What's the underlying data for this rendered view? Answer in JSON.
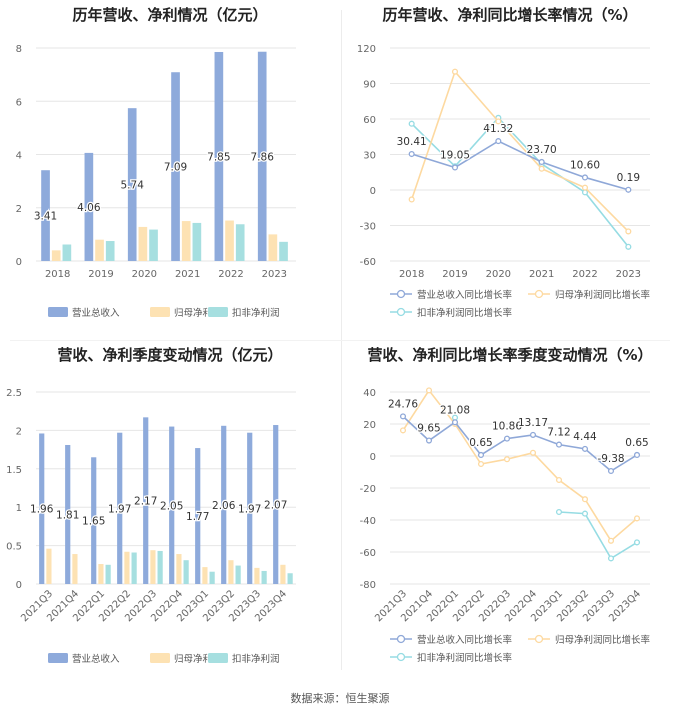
{
  "colors": {
    "revenue": "#8eaadb",
    "parent_profit": "#fde2b3",
    "deducted_profit": "#a6dfe0",
    "revenue_line": "#8fa8d8",
    "parent_line": "#fdd9a0",
    "deducted_line": "#96dce3",
    "grid": "#e6e6e6",
    "axis_text": "#666666"
  },
  "source": "数据来源：恒生聚源",
  "chart_data": [
    {
      "type": "bar",
      "title": "历年营收、净利情况（亿元）",
      "categories": [
        "2018",
        "2019",
        "2020",
        "2021",
        "2022",
        "2023"
      ],
      "ylim": [
        0,
        8
      ],
      "yticks": [
        "0",
        "2",
        "4",
        "6",
        "8"
      ],
      "series": [
        {
          "name": "营业总收入",
          "values": [
            3.41,
            4.06,
            5.74,
            7.09,
            7.85,
            7.86
          ],
          "labels": [
            "3.41",
            "4.06",
            "5.74",
            "7.09",
            "7.85",
            "7.86"
          ]
        },
        {
          "name": "归母净利润",
          "values": [
            0.4,
            0.8,
            1.28,
            1.5,
            1.52,
            1.0
          ]
        },
        {
          "name": "扣非净利润",
          "values": [
            0.62,
            0.75,
            1.18,
            1.43,
            1.38,
            0.72
          ]
        }
      ],
      "legend_position": "bottom"
    },
    {
      "type": "line",
      "title": "历年营收、净利同比增长率情况（%）",
      "categories": [
        "2018",
        "2019",
        "2020",
        "2021",
        "2022",
        "2023"
      ],
      "ylim": [
        -60,
        120
      ],
      "yticks": [
        "-60",
        "-30",
        "0",
        "30",
        "60",
        "90",
        "120"
      ],
      "series": [
        {
          "name": "营业总收入同比增长率",
          "values": [
            30.41,
            19.05,
            41.32,
            23.7,
            10.6,
            0.19
          ],
          "labels": [
            "30.41",
            "19.05",
            "41.32",
            "23.70",
            "10.60",
            "0.19"
          ]
        },
        {
          "name": "归母净利润同比增长率",
          "values": [
            -8,
            100,
            58,
            18,
            2,
            -35
          ]
        },
        {
          "name": "扣非净利润同比增长率",
          "values": [
            56,
            20,
            61,
            22,
            -2,
            -48
          ]
        }
      ],
      "legend_position": "bottom"
    },
    {
      "type": "bar",
      "title": "营收、净利季度变动情况（亿元）",
      "categories": [
        "2021Q3",
        "2021Q4",
        "2022Q1",
        "2022Q2",
        "2022Q3",
        "2022Q4",
        "2023Q1",
        "2023Q2",
        "2023Q3",
        "2023Q4"
      ],
      "ylim": [
        0,
        2.5
      ],
      "yticks": [
        "0",
        "0.5",
        "1",
        "1.5",
        "2",
        "2.5"
      ],
      "series": [
        {
          "name": "营业总收入",
          "values": [
            1.96,
            1.81,
            1.65,
            1.97,
            2.17,
            2.05,
            1.77,
            2.06,
            1.97,
            2.07
          ],
          "labels": [
            "1.96",
            "1.81",
            "1.65",
            "1.97",
            "2.17",
            "2.05",
            "1.77",
            "2.06",
            "1.97",
            "2.07"
          ]
        },
        {
          "name": "归母净利润",
          "values": [
            0.46,
            0.39,
            0.26,
            0.42,
            0.44,
            0.39,
            0.22,
            0.31,
            0.21,
            0.25
          ]
        },
        {
          "name": "扣非净利润",
          "values": [
            0,
            0,
            0.25,
            0.41,
            0.43,
            0.31,
            0.16,
            0.24,
            0.17,
            0.14
          ]
        }
      ],
      "legend_position": "bottom"
    },
    {
      "type": "line",
      "title": "营收、净利同比增长率季度变动情况（%）",
      "categories": [
        "2021Q3",
        "2021Q4",
        "2022Q1",
        "2022Q2",
        "2022Q3",
        "2022Q4",
        "2023Q1",
        "2023Q2",
        "2023Q3",
        "2023Q4"
      ],
      "ylim": [
        -80,
        40
      ],
      "yticks": [
        "-80",
        "-60",
        "-40",
        "-20",
        "0",
        "20",
        "40"
      ],
      "series": [
        {
          "name": "营业总收入同比增长率",
          "values": [
            24.76,
            9.65,
            21.08,
            0.65,
            10.86,
            13.17,
            7.12,
            4.44,
            -9.38,
            0.65
          ],
          "labels": [
            "24.76",
            "9.65",
            "21.08",
            "0.65",
            "10.86",
            "13.17",
            "7.12",
            "4.44",
            "-9.38",
            "0.65"
          ]
        },
        {
          "name": "归母净利润同比增长率",
          "values": [
            16,
            41,
            20,
            -5,
            -2,
            2,
            -15,
            -27,
            -53,
            -39
          ]
        },
        {
          "name": "扣非净利润同比增长率",
          "values": [
            null,
            null,
            24,
            null,
            null,
            null,
            -35,
            -36,
            -64,
            -54
          ]
        }
      ],
      "legend_position": "bottom"
    }
  ]
}
